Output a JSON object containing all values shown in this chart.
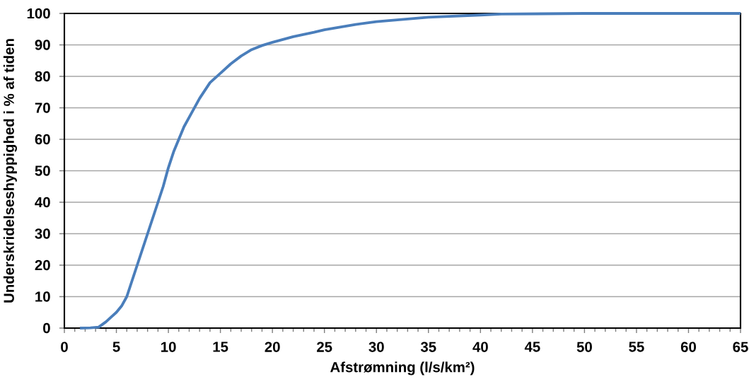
{
  "chart_data": {
    "type": "line",
    "xlabel": "Afstrømning (l/s/km²)",
    "ylabel": "Underskridelseshyppighed i  % af tiden",
    "x": [
      1.5,
      2.5,
      3.3,
      4,
      4.5,
      5,
      5.5,
      6,
      6.5,
      7,
      7.5,
      8,
      8.5,
      9,
      9.5,
      10,
      10.5,
      11,
      11.5,
      12,
      13,
      14,
      15,
      16,
      17,
      18,
      19,
      20,
      22,
      24,
      25,
      28,
      30,
      35,
      40,
      42,
      50,
      65
    ],
    "series": [
      {
        "color": "#4a7ebb",
        "values": [
          0,
          0.1,
          0.3,
          2,
          3.5,
          5,
          7,
          10,
          15,
          20,
          25,
          30,
          35,
          40,
          45,
          51,
          56,
          60,
          64,
          67,
          73,
          78,
          81,
          84,
          86.5,
          88.5,
          89.8,
          90.8,
          92.6,
          94,
          94.8,
          96.5,
          97.4,
          98.8,
          99.5,
          99.8,
          100,
          100
        ]
      }
    ],
    "xlim": [
      0,
      65
    ],
    "ylim": [
      0,
      100
    ],
    "xticks": [
      0,
      5,
      10,
      15,
      20,
      25,
      30,
      35,
      40,
      45,
      50,
      55,
      60,
      65
    ],
    "yticks": [
      0,
      10,
      20,
      30,
      40,
      50,
      60,
      70,
      80,
      90,
      100
    ],
    "grid": "y",
    "marker": "none",
    "line_style": "solid"
  }
}
